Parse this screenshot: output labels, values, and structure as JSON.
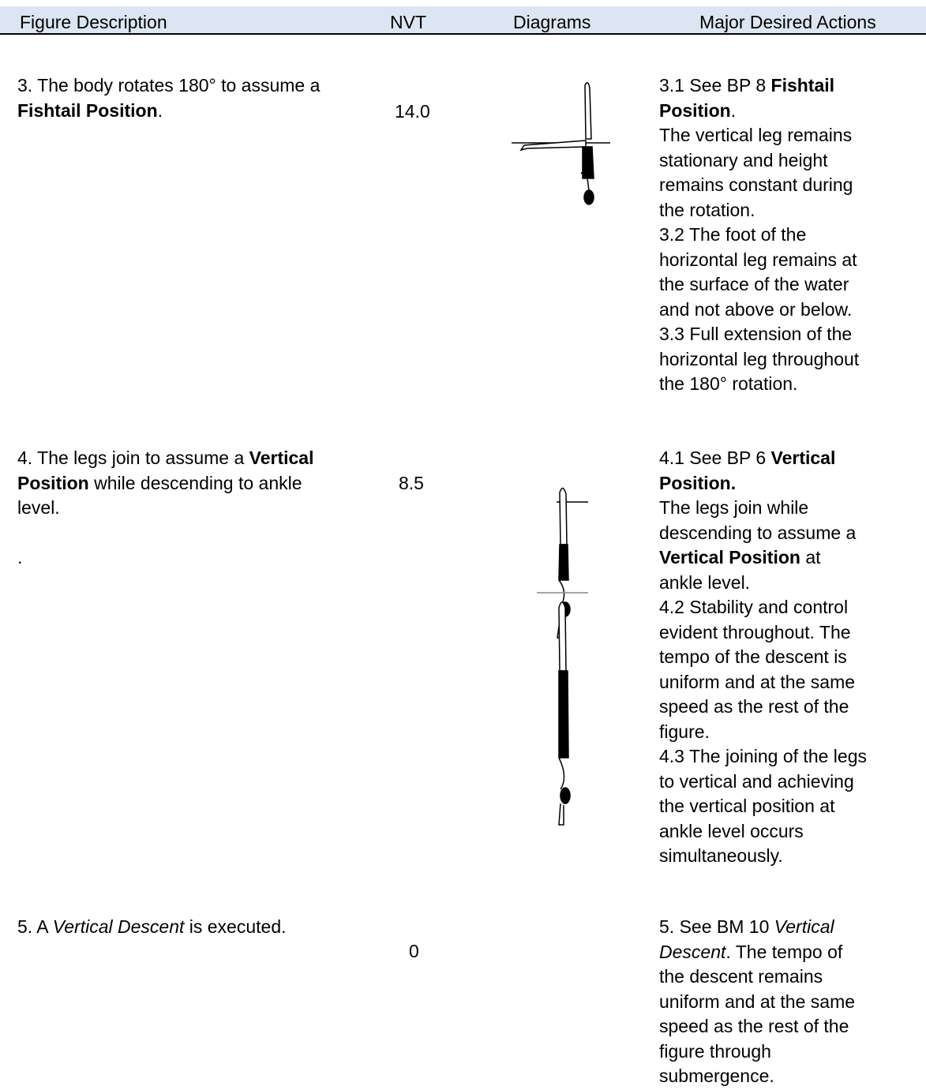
{
  "header": [
    "Figure Description",
    "NVT",
    "Diagrams",
    "Major Desired Actions"
  ],
  "rows": [
    {
      "description": [
        [
          {
            "text": "3. The body rotates 180° to assume a"
          }
        ],
        [
          {
            "text": "Fishtail Position",
            "bold": true
          },
          {
            "text": "."
          }
        ]
      ],
      "nvt": "14.0",
      "actions": [
        [
          {
            "text": "3.1 See BP 8 "
          },
          {
            "text": "Fishtail",
            "bold": true
          }
        ],
        [
          {
            "text": "Position",
            "bold": true
          },
          {
            "text": "."
          }
        ],
        [
          {
            "text": "The vertical leg remains"
          }
        ],
        [
          {
            "text": "stationary and height"
          }
        ],
        [
          {
            "text": "remains constant during"
          }
        ],
        [
          {
            "text": "the rotation."
          }
        ],
        [
          {
            "text": "3.2 The foot of the"
          }
        ],
        [
          {
            "text": "horizontal leg remains at"
          }
        ],
        [
          {
            "text": "the surface of the water"
          }
        ],
        [
          {
            "text": "and not above or below."
          }
        ],
        [
          {
            "text": "3.3 Full extension of the"
          }
        ],
        [
          {
            "text": "horizontal leg throughout"
          }
        ],
        [
          {
            "text": "the 180° rotation."
          }
        ]
      ]
    },
    {
      "description": [
        [
          {
            "text": "4. The legs join to assume a "
          },
          {
            "text": "Vertical",
            "bold": true
          }
        ],
        [
          {
            "text": "Position",
            "bold": true
          },
          {
            "text": " while descending to ankle"
          }
        ],
        [
          {
            "text": "level."
          }
        ],
        [],
        [
          {
            "text": "."
          }
        ]
      ],
      "nvt": "8.5",
      "actions": [
        [
          {
            "text": "4.1 See BP 6 "
          },
          {
            "text": "Vertical",
            "bold": true
          }
        ],
        [
          {
            "text": "Position.",
            "bold": true
          }
        ],
        [
          {
            "text": "The legs join while"
          }
        ],
        [
          {
            "text": "descending to assume a"
          }
        ],
        [
          {
            "text": "Vertical Position",
            "bold": true
          },
          {
            "text": " at"
          }
        ],
        [
          {
            "text": "ankle level."
          }
        ],
        [
          {
            "text": "4.2 Stability and control"
          }
        ],
        [
          {
            "text": "evident throughout. The"
          }
        ],
        [
          {
            "text": "tempo of the descent is"
          }
        ],
        [
          {
            "text": "uniform and at the same"
          }
        ],
        [
          {
            "text": "speed as the rest of the"
          }
        ],
        [
          {
            "text": "figure."
          }
        ],
        [
          {
            "text": "4.3 The joining of the legs"
          }
        ],
        [
          {
            "text": "to vertical and achieving"
          }
        ],
        [
          {
            "text": "the vertical position at"
          }
        ],
        [
          {
            "text": "ankle level occurs"
          }
        ],
        [
          {
            "text": "simultaneously."
          }
        ]
      ]
    },
    {
      "description": [
        [
          {
            "text": "5. A "
          },
          {
            "text": "Vertical Descent",
            "italic": true
          },
          {
            "text": " is executed."
          }
        ]
      ],
      "nvt": "0",
      "actions": [
        [
          {
            "text": "5. See BM 10 "
          },
          {
            "text": "Vertical",
            "italic": true
          }
        ],
        [
          {
            "text": "Descent",
            "italic": true
          },
          {
            "text": ". The tempo of"
          }
        ],
        [
          {
            "text": "the descent remains"
          }
        ],
        [
          {
            "text": "uniform and at the same"
          }
        ],
        [
          {
            "text": "speed as the rest of the"
          }
        ],
        [
          {
            "text": "figure through"
          }
        ],
        [
          {
            "text": "submergence."
          }
        ]
      ]
    }
  ]
}
